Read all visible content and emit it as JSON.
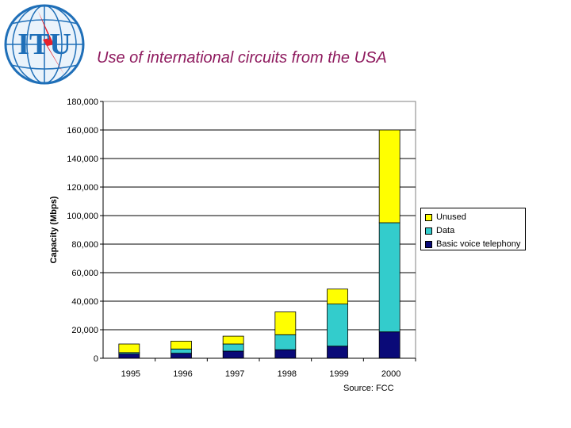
{
  "logo": {
    "text": "ITU"
  },
  "title": "Use of international circuits from the USA",
  "source_note": "Source: FCC",
  "colors": {
    "Basic voice telephony": "#0a0a78",
    "Data": "#33cccc",
    "Unused": "#ffff00",
    "title": "#8e1a5e",
    "logo_blue": "#1f6fb8",
    "logo_red": "#e8202a"
  },
  "chart_data": {
    "type": "bar",
    "stacked": true,
    "title": "Use of international circuits from the USA",
    "xlabel": "",
    "ylabel": "Capacity (Mbps)",
    "ylim": [
      0,
      180000
    ],
    "ytick_step": 20000,
    "grid": true,
    "legend_position": "right",
    "categories": [
      "1995",
      "1996",
      "1997",
      "1998",
      "1999",
      "2000"
    ],
    "series": [
      {
        "name": "Basic voice telephony",
        "values": [
          3000,
          3500,
          5000,
          6000,
          8500,
          18500
        ]
      },
      {
        "name": "Data",
        "values": [
          1000,
          3000,
          5000,
          10500,
          29500,
          76500
        ]
      },
      {
        "name": "Unused",
        "values": [
          6000,
          5500,
          5500,
          16000,
          10500,
          65000
        ]
      }
    ]
  }
}
